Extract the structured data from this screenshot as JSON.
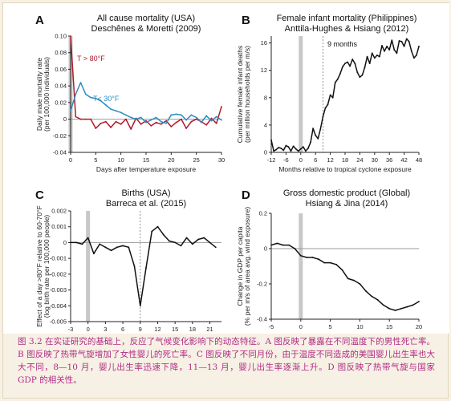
{
  "chart_data": [
    {
      "type": "line",
      "letter": "A",
      "title": "All cause mortality (USA)",
      "subtitle": "Deschênes & Moretti (2009)",
      "xlabel": "Days after temperature exposure",
      "ylabel": [
        "Daily male mortality rate",
        "(per 100,000 individuals)"
      ],
      "xlim": [
        0,
        30
      ],
      "ylim": [
        -0.04,
        0.1
      ],
      "xticks": [
        0,
        5,
        10,
        15,
        20,
        25,
        30
      ],
      "yticks": [
        -0.04,
        -0.02,
        0,
        0.02,
        0.04,
        0.06,
        0.08,
        0.1
      ],
      "yticklabels": [
        "-0.04",
        "-0.02",
        "0",
        "0.02",
        "0.04",
        "0.06",
        "0.08",
        "0.10"
      ],
      "shade_x": 0,
      "zero_line": true,
      "series": [
        {
          "name": "T > 80°F",
          "color": "#b2182b",
          "x": [
            0,
            1,
            2,
            3,
            4,
            5,
            6,
            7,
            8,
            9,
            10,
            11,
            12,
            13,
            14,
            15,
            16,
            17,
            18,
            19,
            20,
            21,
            22,
            23,
            24,
            25,
            26,
            27,
            28,
            29,
            30
          ],
          "values": [
            0.1,
            0.003,
            0.0,
            0.0,
            0.0,
            -0.011,
            -0.005,
            -0.003,
            -0.01,
            -0.003,
            -0.006,
            0.0,
            -0.012,
            0.001,
            -0.006,
            -0.002,
            -0.008,
            -0.004,
            -0.006,
            -0.002,
            -0.009,
            -0.004,
            0.0,
            -0.011,
            -0.003,
            0.0,
            -0.003,
            -0.007,
            0.001,
            -0.005,
            0.015
          ]
        },
        {
          "name": "T< 30°F",
          "color": "#2b8cbe",
          "x": [
            0,
            1,
            2,
            3,
            4,
            5,
            6,
            7,
            8,
            9,
            10,
            11,
            12,
            13,
            14,
            15,
            16,
            17,
            18,
            19,
            20,
            21,
            22,
            23,
            24,
            25,
            26,
            27,
            28,
            29,
            30
          ],
          "values": [
            0.01,
            0.03,
            0.044,
            0.03,
            0.026,
            0.025,
            0.022,
            0.017,
            0.012,
            0.01,
            0.008,
            0.005,
            0.002,
            0.0,
            0.002,
            -0.004,
            -0.001,
            0.002,
            -0.003,
            -0.005,
            0.005,
            0.006,
            0.005,
            -0.001,
            0.005,
            0.002,
            -0.004,
            0.004,
            -0.002,
            0.003,
            -0.001
          ]
        }
      ]
    },
    {
      "type": "line",
      "letter": "B",
      "title": "Female infant mortality (Philippines)",
      "subtitle": "Anttila-Hughes & Hsiang (2012)",
      "xlabel": "Months relative to tropical cyclone exposure",
      "ylabel": [
        "Cumulative female infant deaths",
        "(per million households per m/s)"
      ],
      "xlim": [
        -12,
        48
      ],
      "ylim": [
        0,
        17
      ],
      "xticks": [
        -12,
        -6,
        0,
        6,
        12,
        18,
        24,
        30,
        36,
        42,
        48
      ],
      "yticks": [
        0,
        4,
        8,
        12,
        16
      ],
      "yticklabels": [
        "0",
        "4",
        "8",
        "12",
        "16"
      ],
      "shade_x": 0,
      "zero_line": false,
      "vline_x": 9,
      "vline_label": "9 months",
      "series": [
        {
          "color": "#111111",
          "x": [
            -12,
            -11,
            -10,
            -9,
            -8,
            -7,
            -6,
            -5,
            -4,
            -3,
            -2,
            -1,
            0,
            1,
            2,
            3,
            4,
            5,
            6,
            7,
            8,
            9,
            10,
            11,
            12,
            13,
            14,
            15,
            16,
            17,
            18,
            19,
            20,
            21,
            22,
            23,
            24,
            25,
            26,
            27,
            28,
            29,
            30,
            31,
            32,
            33,
            34,
            35,
            36,
            37,
            38,
            39,
            40,
            41,
            42,
            43,
            44,
            45,
            46,
            47,
            48
          ],
          "values": [
            1.8,
            0.2,
            0.4,
            0.7,
            0.6,
            0.3,
            1.0,
            0.8,
            0.2,
            0.9,
            0.5,
            0.2,
            0.5,
            0.8,
            0.2,
            0.6,
            1.5,
            3.5,
            2.5,
            2.0,
            3.4,
            5.2,
            6.5,
            7.0,
            8.4,
            8.0,
            10.2,
            10.7,
            11.5,
            12.5,
            13.0,
            13.2,
            12.6,
            13.6,
            13.0,
            11.7,
            11.0,
            11.3,
            12.4,
            14.0,
            13.0,
            14.5,
            13.8,
            14.2,
            14.0,
            15.6,
            14.8,
            15.5,
            15.0,
            16.4,
            15.0,
            14.5,
            16.3,
            16.2,
            15.5,
            16.6,
            16.2,
            14.8,
            13.8,
            14.2,
            15.5
          ]
        }
      ]
    },
    {
      "type": "line",
      "letter": "C",
      "title": "Births (USA)",
      "subtitle": "Barreca et al. (2015)",
      "xlabel": "Months relative to temperature exposure",
      "ylabel": [
        "Effect of a day >80°F relative to 60-70°F",
        "(log birth rate per 100,000 people)"
      ],
      "xlim": [
        -3,
        23
      ],
      "ylim": [
        -0.005,
        0.002
      ],
      "xticks": [
        -3,
        0,
        3,
        6,
        9,
        12,
        15,
        18,
        21
      ],
      "yticks": [
        -0.005,
        -0.004,
        -0.003,
        -0.002,
        -0.001,
        0,
        0.001,
        0.002
      ],
      "yticklabels": [
        "-0.005",
        "-0.004",
        "-0.003",
        "-0.002",
        "-0.001",
        "0",
        "0.001",
        "0.002"
      ],
      "shade_x": 0,
      "zero_line": true,
      "vline_x": 9,
      "series": [
        {
          "color": "#111111",
          "x": [
            -3,
            -2,
            -1,
            0,
            1,
            2,
            3,
            4,
            5,
            6,
            7,
            8,
            9,
            10,
            11,
            12,
            13,
            14,
            15,
            16,
            17,
            18,
            19,
            20,
            21,
            22
          ],
          "values": [
            0.0,
            0.0,
            -0.0001,
            0.0003,
            -0.0007,
            -0.0001,
            -0.0003,
            -0.0005,
            -0.0003,
            -0.0002,
            -0.0003,
            -0.0015,
            -0.004,
            -0.0016,
            0.0007,
            0.001,
            0.0005,
            0.0001,
            0.0,
            -0.0002,
            0.0003,
            -0.0001,
            0.0002,
            0.0003,
            0.0,
            -0.0003
          ]
        }
      ]
    },
    {
      "type": "line",
      "letter": "D",
      "title": "Gross domestic product (Global)",
      "subtitle": "Hsiang & Jina (2014)",
      "xlabel": "Years relative to tropical cyclone",
      "ylabel": [
        "Change in GDP per capita",
        "(% per m/s of area avg. wind exposure)"
      ],
      "xlim": [
        -5,
        20
      ],
      "ylim": [
        -0.4,
        0.2
      ],
      "xticks": [
        -5,
        0,
        5,
        10,
        15,
        20
      ],
      "yticks": [
        -0.4,
        -0.2,
        0,
        0.2
      ],
      "yticklabels": [
        "-0.4",
        "-0.2",
        "0",
        "0.2"
      ],
      "shade_x": 0,
      "zero_line": true,
      "series": [
        {
          "color": "#111111",
          "x": [
            -5,
            -4,
            -3,
            -2,
            -1,
            0,
            1,
            2,
            3,
            4,
            5,
            6,
            7,
            8,
            9,
            10,
            11,
            12,
            13,
            14,
            15,
            16,
            17,
            18,
            19,
            20
          ],
          "values": [
            0.02,
            0.03,
            0.02,
            0.02,
            0.0,
            -0.04,
            -0.05,
            -0.05,
            -0.06,
            -0.08,
            -0.08,
            -0.09,
            -0.12,
            -0.17,
            -0.18,
            -0.2,
            -0.24,
            -0.27,
            -0.29,
            -0.32,
            -0.34,
            -0.35,
            -0.34,
            -0.33,
            -0.32,
            -0.3
          ]
        }
      ]
    }
  ],
  "caption": {
    "text": "图 3.2 在实证研究的基础上，反应了气候变化影响下的动态特征。A 图反映了暴露在不同温度下的男性死亡率。B 图反映了热带气旋增加了女性婴儿的死亡率。C 图反映了不同月份，由于温度不同造成的美国婴儿出生率也大大不同，8—10 月，婴儿出生率迅速下降，11—13 月，婴儿出生率逐渐上升。D 图反映了热带气旋与国家 GDP 的相关性。",
    "color": "#b12a86"
  }
}
